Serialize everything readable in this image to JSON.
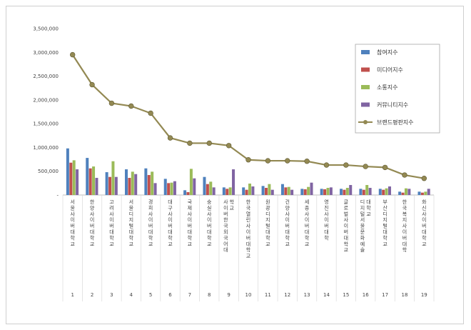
{
  "chart_data": {
    "type": "bar",
    "title": "",
    "xlabel": "",
    "ylabel": "",
    "ylim": [
      0,
      3500000
    ],
    "yticks": [
      0,
      500000,
      1000000,
      1500000,
      2000000,
      2500000,
      3000000,
      3500000
    ],
    "ytick_labels": [
      "-",
      "500,000",
      "1,000,000",
      "1,500,000",
      "2,000,000",
      "2,500,000",
      "3,000,000",
      "3,500,000"
    ],
    "grid": false,
    "legend_position": "right",
    "ranks": [
      "1",
      "2",
      "3",
      "4",
      "5",
      "6",
      "7",
      "8",
      "9",
      "10",
      "11",
      "12",
      "13",
      "14",
      "15",
      "16",
      "17",
      "18",
      "19"
    ],
    "categories": [
      "서울사이버대학교",
      "한양사이버대학교",
      "고려사이버대학교",
      "서울디지털대학교",
      "경희사이버대학교",
      "대구사이버대학교",
      "국제사이버대학교",
      "숭실사이버대학교",
      "사이버한국외국어대학교",
      "한국열린사이버대학교",
      "원광디지털대학교",
      "건양사이버대학교",
      "세종사이버대학교",
      "영진사이버대학",
      "글로벌사이버대학교",
      "디지털서울문화예술대학교",
      "부산디지털대학교",
      "한국복지사이버대학",
      "화신사이버대학교"
    ],
    "series": [
      {
        "name": "참여지수",
        "color": "#4f81bd",
        "kind": "bar",
        "values": [
          980000,
          780000,
          480000,
          540000,
          560000,
          340000,
          100000,
          380000,
          160000,
          160000,
          190000,
          230000,
          130000,
          130000,
          130000,
          130000,
          130000,
          70000,
          70000
        ]
      },
      {
        "name": "미디어지수",
        "color": "#c0504d",
        "kind": "bar",
        "values": [
          680000,
          560000,
          380000,
          360000,
          420000,
          250000,
          60000,
          230000,
          130000,
          110000,
          150000,
          160000,
          120000,
          120000,
          110000,
          110000,
          110000,
          50000,
          50000
        ]
      },
      {
        "name": "소통지수",
        "color": "#9bbb59",
        "kind": "bar",
        "values": [
          730000,
          600000,
          710000,
          490000,
          490000,
          260000,
          550000,
          280000,
          160000,
          240000,
          230000,
          170000,
          170000,
          150000,
          150000,
          210000,
          140000,
          140000,
          70000
        ]
      },
      {
        "name": "커뮤니티지수",
        "color": "#8064a2",
        "kind": "bar",
        "values": [
          540000,
          360000,
          380000,
          440000,
          250000,
          290000,
          350000,
          160000,
          540000,
          180000,
          110000,
          110000,
          260000,
          160000,
          210000,
          150000,
          180000,
          130000,
          130000
        ]
      },
      {
        "name": "브랜드평판지수",
        "color": "#938953",
        "kind": "line",
        "values": [
          2950000,
          2320000,
          1930000,
          1870000,
          1720000,
          1200000,
          1090000,
          1090000,
          1040000,
          740000,
          720000,
          720000,
          710000,
          630000,
          630000,
          600000,
          580000,
          420000,
          350000
        ]
      }
    ]
  }
}
